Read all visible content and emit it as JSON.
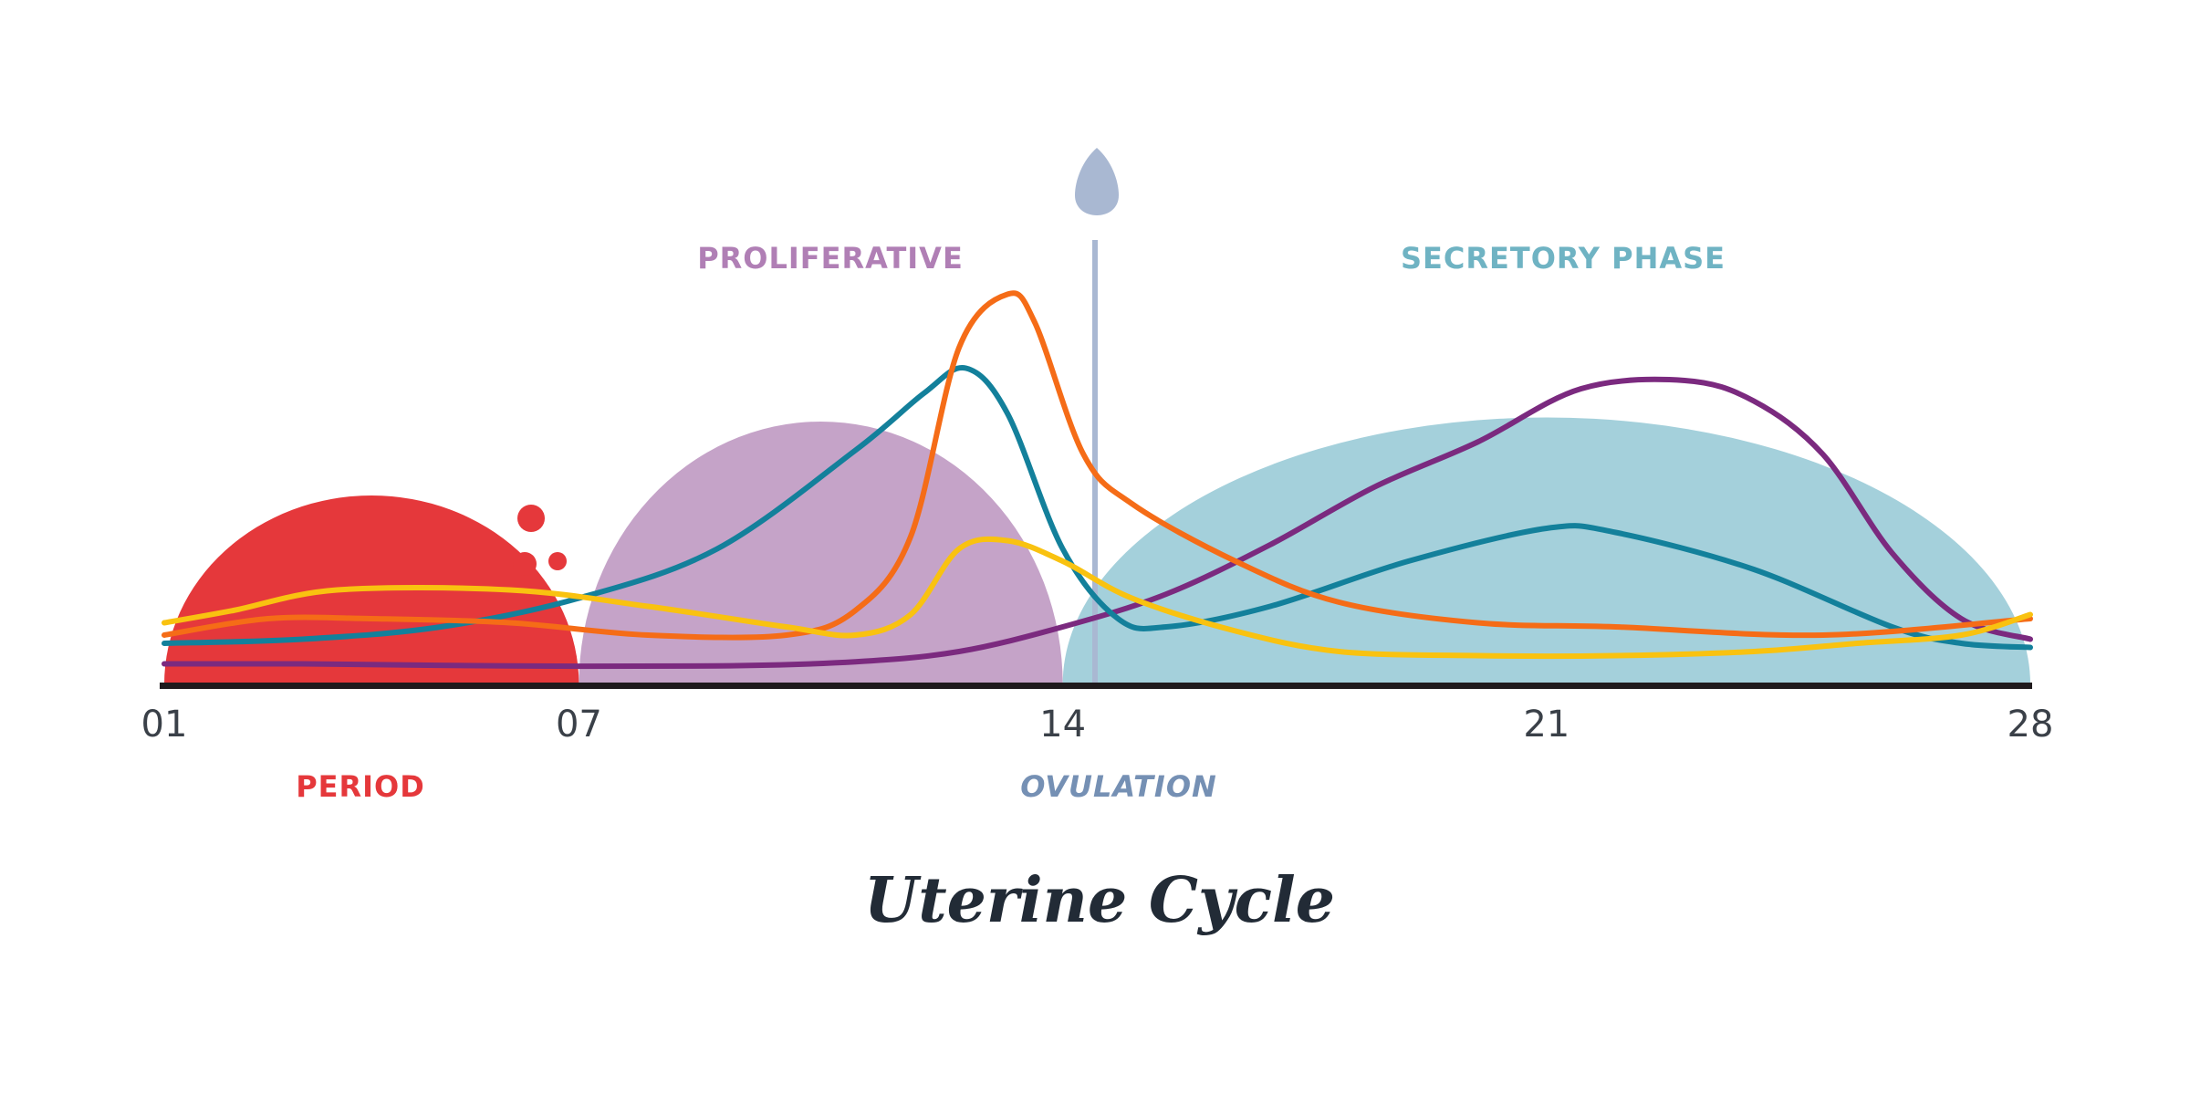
{
  "chart_data": {
    "type": "line",
    "title": "Uterine Cycle",
    "x_ticks": [
      "01",
      "07",
      "14",
      "21",
      "28"
    ],
    "xlim": [
      1,
      28
    ],
    "ylim": [
      0,
      100
    ],
    "grid": false,
    "phases": [
      {
        "label": "PERIOD",
        "start": 1,
        "end": 7,
        "peak": 46,
        "color": "#e5383b"
      },
      {
        "label": "PROLIFERATIVE",
        "start": 7,
        "end": 14,
        "peak": 64,
        "color": "#c5a3c8"
      },
      {
        "label": "SECRETORY PHASE",
        "start": 14,
        "end": 28,
        "peak": 65,
        "color": "#a4d0db"
      }
    ],
    "ovulation": {
      "label": "OVULATION",
      "day": 14,
      "color": "#a9b8d2"
    },
    "series": [
      {
        "color": "#7b2a7f",
        "x": [
          1,
          3,
          6,
          9,
          11,
          12.5,
          14,
          15.5,
          17,
          18.5,
          20,
          21.5,
          23,
          24,
          25,
          26,
          27,
          28
        ],
        "y": [
          5,
          5,
          4.5,
          4.5,
          5.5,
          8,
          14,
          22,
          34,
          48,
          59,
          72,
          74,
          69,
          56,
          32,
          16,
          11
        ]
      },
      {
        "color": "#13809b",
        "x": [
          1,
          3,
          5,
          7,
          9,
          11,
          12,
          12.6,
          13.2,
          14,
          14.8,
          15.5,
          17,
          19,
          21,
          22,
          24,
          26,
          27,
          28
        ],
        "y": [
          10,
          11,
          14,
          21,
          33,
          57,
          71,
          77,
          66,
          33,
          16,
          14,
          19,
          30,
          38,
          37,
          28,
          14,
          10,
          9
        ]
      },
      {
        "color": "#f56c17",
        "x": [
          1,
          2.5,
          4,
          6,
          8,
          10,
          11,
          11.8,
          12.5,
          13.2,
          13.6,
          14.3,
          15,
          16.5,
          18,
          20,
          22,
          25,
          28
        ],
        "y": [
          12,
          16,
          16,
          15,
          12,
          12,
          18,
          36,
          82,
          95,
          88,
          56,
          44,
          30,
          20,
          15,
          14,
          12,
          16
        ]
      },
      {
        "color": "#f9c210",
        "x": [
          1,
          2,
          3.5,
          6,
          8,
          10,
          11,
          11.8,
          12.5,
          13.2,
          14,
          15,
          16.5,
          18,
          20,
          22,
          24,
          25.5,
          27,
          28
        ],
        "y": [
          15,
          18,
          23,
          23,
          19,
          14,
          12,
          17,
          33,
          35,
          30,
          21,
          13,
          8,
          7,
          7,
          8,
          10,
          12,
          17
        ]
      }
    ]
  },
  "labels": {
    "period": "PERIOD",
    "proliferative": "PROLIFERATIVE",
    "secretory": "SECRETORY PHASE",
    "ovulation": "OVULATION"
  }
}
